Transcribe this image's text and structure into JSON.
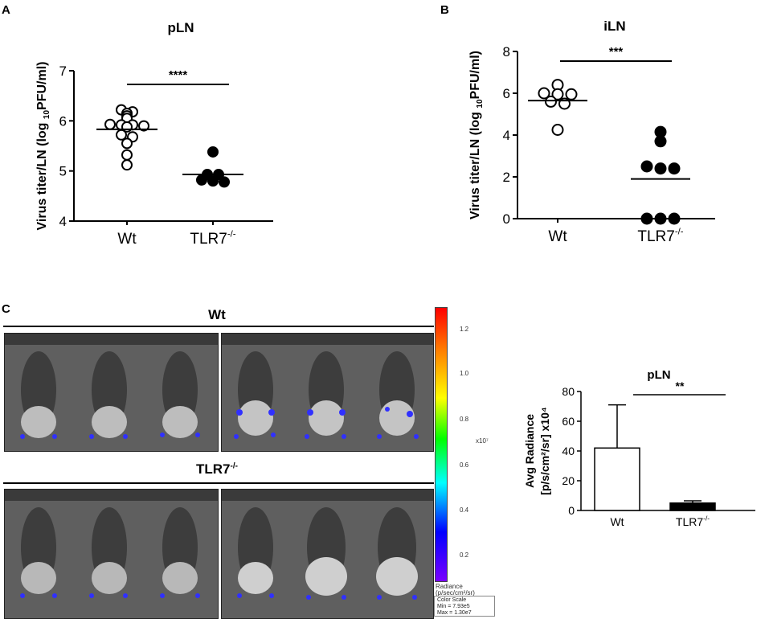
{
  "panels": {
    "a": "A",
    "b": "B",
    "c": "C"
  },
  "chart_data": [
    {
      "type": "scatter",
      "title": "pLN",
      "ylabel": "Virus titer/LN (log 10PFU/ml)",
      "ylabel_parts": {
        "pre": "Virus titer/LN (log ",
        "sub": "10",
        "post": "PFU/ml)"
      },
      "categories": [
        "Wt",
        "TLR7-/-"
      ],
      "category_parts": [
        {
          "main": "Wt",
          "sup": ""
        },
        {
          "main": "TLR7",
          "sup": "-/-"
        }
      ],
      "ylim": [
        4,
        7
      ],
      "yticks": [
        4,
        5,
        6,
        7
      ],
      "series": [
        {
          "name": "Wt",
          "filled": false,
          "mean": 5.83,
          "points": [
            6.22,
            6.15,
            6.18,
            6.05,
            6.1,
            5.92,
            5.9,
            5.93,
            5.88,
            5.92,
            5.72,
            5.68,
            5.55,
            5.32,
            5.12
          ]
        },
        {
          "name": "TLR7-/-",
          "filled": true,
          "mean": 4.93,
          "points": [
            5.38,
            4.93,
            4.93,
            4.8,
            4.78,
            4.82
          ]
        }
      ],
      "significance": "****"
    },
    {
      "type": "scatter",
      "title": "iLN",
      "ylabel": "Virus titer/LN (log 10PFU/ml)",
      "ylabel_parts": {
        "pre": "Virus titer/LN (log ",
        "sub": "10",
        "post": "PFU/ml)"
      },
      "categories": [
        "Wt",
        "TLR7-/-"
      ],
      "category_parts": [
        {
          "main": "Wt",
          "sup": ""
        },
        {
          "main": "TLR7",
          "sup": "-/-"
        }
      ],
      "ylim": [
        0,
        8
      ],
      "yticks": [
        0,
        2,
        4,
        6,
        8
      ],
      "series": [
        {
          "name": "Wt",
          "filled": false,
          "mean": 5.65,
          "points": [
            6.4,
            5.95,
            5.95,
            6.0,
            5.6,
            5.5,
            4.25
          ]
        },
        {
          "name": "TLR7-/-",
          "filled": true,
          "mean": 1.9,
          "points": [
            4.15,
            3.7,
            2.4,
            2.5,
            2.4,
            0.0,
            0.0,
            0.0
          ]
        }
      ],
      "significance": "***"
    },
    {
      "type": "bar",
      "title": "pLN",
      "ylabel": "Avg Radiance [p/s/cm²/sr] x10⁴",
      "ylabel_line1": "Avg Radiance",
      "ylabel_line2": "[p/s/cm²/sr]  x10⁴",
      "categories": [
        "Wt",
        "TLR7-/-"
      ],
      "category_parts": [
        {
          "main": "Wt",
          "sup": ""
        },
        {
          "main": "TLR7",
          "sup": "-/-"
        }
      ],
      "values": [
        42,
        5
      ],
      "errors": [
        29,
        1.5
      ],
      "fills": [
        "#ffffff",
        "#000000"
      ],
      "ylim": [
        0,
        80
      ],
      "yticks": [
        0,
        20,
        40,
        60,
        80
      ],
      "significance": "**"
    }
  ],
  "imaging": {
    "wt_label": "Wt",
    "tlr_label": {
      "main": "TLR7",
      "sup": "-/-"
    },
    "colorbar": {
      "ticks": [
        "1.2",
        "1.0",
        "0.8",
        "0.6",
        "0.4",
        "0.2"
      ],
      "exponent": "x10⁷",
      "unit_line1": "Radiance",
      "unit_line2": "(p/sec/cm²/sr)",
      "scale_title": "Color Scale",
      "scale_min": "Min = 7.93e5",
      "scale_max": "Max = 1.30e7"
    }
  }
}
